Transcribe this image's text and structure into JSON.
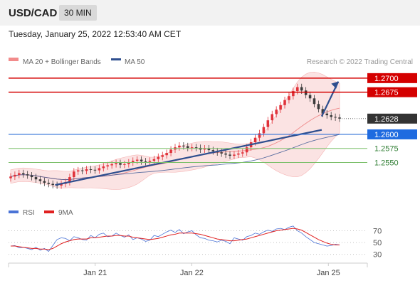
{
  "header": {
    "symbol": "USD/CAD",
    "timeframe": "30 MIN"
  },
  "timestamp": "Tuesday, January 25, 2022 12:53:40 AM CET",
  "legend": {
    "ma20": "MA 20 + Bollinger Bands",
    "ma50": "MA 50",
    "source": "Research © 2022 Trading Central"
  },
  "rsi_legend": {
    "rsi": "RSI",
    "ma": "9MA"
  },
  "colors": {
    "candle_up": "#e0323a",
    "candle_down": "#3a3a3a",
    "resistance": "#d40000",
    "support_main": "#2f6fd6",
    "support_minor": "#7bbf6a",
    "trendline": "#2f4f8f",
    "bb_fill": "#fbe3e3",
    "ma50": "#2f4f8f",
    "rsi": "#4a73d6",
    "rsi_ma": "#e02020"
  },
  "chart_data": [
    {
      "type": "candlestick",
      "title": "USD/CAD 30 MIN",
      "x_ticks": [
        "Jan 21",
        "Jan 22",
        "Jan 25"
      ],
      "ylim": [
        1.2495,
        1.2715
      ],
      "levels": [
        {
          "value": 1.27,
          "label": "1.2700",
          "kind": "resistance"
        },
        {
          "value": 1.2675,
          "label": "1.2675",
          "kind": "resistance"
        },
        {
          "value": 1.2628,
          "label": "1.2628",
          "kind": "last"
        },
        {
          "value": 1.26,
          "label": "1.2600",
          "kind": "support"
        },
        {
          "value": 1.2575,
          "label": "1.2575",
          "kind": "support_minor"
        },
        {
          "value": 1.255,
          "label": "1.2550",
          "kind": "support_minor"
        }
      ],
      "closes": [
        1.2525,
        1.2528,
        1.2531,
        1.2529,
        1.2527,
        1.2524,
        1.252,
        1.2517,
        1.2514,
        1.2512,
        1.251,
        1.2509,
        1.2512,
        1.2515,
        1.2524,
        1.2534,
        1.2536,
        1.2535,
        1.2538,
        1.2537,
        1.2536,
        1.254,
        1.2543,
        1.2545,
        1.2547,
        1.2549,
        1.2546,
        1.2547,
        1.255,
        1.2553,
        1.2555,
        1.2552,
        1.2551,
        1.2553,
        1.2556,
        1.256,
        1.2563,
        1.2567,
        1.2573,
        1.2577,
        1.258,
        1.2579,
        1.2576,
        1.2577,
        1.2576,
        1.2573,
        1.2575,
        1.2572,
        1.257,
        1.2568,
        1.2566,
        1.2564,
        1.2562,
        1.2564,
        1.2566,
        1.2568,
        1.2577,
        1.2586,
        1.2594,
        1.2602,
        1.2613,
        1.2625,
        1.2636,
        1.2644,
        1.2652,
        1.2661,
        1.2668,
        1.2677,
        1.2684,
        1.2678,
        1.267,
        1.2664,
        1.2654,
        1.2645,
        1.2637,
        1.2634,
        1.2631,
        1.263,
        1.2628
      ],
      "tick_positions": [
        0.26,
        0.55,
        0.96
      ],
      "trendlines": [
        {
          "from": [
            0.14,
            1.251
          ],
          "to": [
            0.94,
            1.2608
          ]
        },
        {
          "from": [
            0.94,
            1.2632
          ],
          "to": [
            0.99,
            1.2694
          ]
        }
      ],
      "series": [
        {
          "name": "MA 20 + Bollinger Bands"
        },
        {
          "name": "MA 50"
        }
      ]
    },
    {
      "type": "line",
      "title": "RSI",
      "ylim": [
        20,
        85
      ],
      "y_ticks": [
        70,
        50,
        30
      ],
      "series": [
        {
          "name": "RSI",
          "values": [
            44,
            45,
            41,
            42,
            40,
            38,
            42,
            37,
            40,
            35,
            45,
            55,
            58,
            57,
            53,
            60,
            58,
            55,
            54,
            62,
            58,
            64,
            66,
            60,
            61,
            66,
            62,
            59,
            63,
            55,
            58,
            56,
            52,
            54,
            62,
            60,
            64,
            68,
            71,
            67,
            72,
            65,
            68,
            70,
            63,
            58,
            57,
            54,
            53,
            51,
            54,
            52,
            48,
            58,
            56,
            54,
            60,
            62,
            66,
            64,
            68,
            71,
            69,
            73,
            74,
            72,
            76,
            78,
            70,
            66,
            60,
            55,
            50,
            48,
            46,
            44,
            45,
            47,
            46
          ]
        },
        {
          "name": "9MA",
          "values": [
            44,
            44,
            43,
            42,
            41,
            40,
            40,
            39,
            39,
            38,
            40,
            44,
            48,
            51,
            53,
            55,
            56,
            56,
            56,
            58,
            58,
            59,
            60,
            61,
            61,
            62,
            62,
            61,
            61,
            59,
            58,
            57,
            56,
            55,
            56,
            57,
            59,
            61,
            63,
            64,
            66,
            66,
            66,
            66,
            65,
            64,
            62,
            60,
            58,
            56,
            55,
            54,
            53,
            53,
            54,
            55,
            56,
            58,
            60,
            62,
            64,
            66,
            68,
            70,
            71,
            72,
            73,
            74,
            73,
            71,
            67,
            63,
            59,
            55,
            52,
            49,
            47,
            46,
            46
          ]
        }
      ]
    }
  ]
}
